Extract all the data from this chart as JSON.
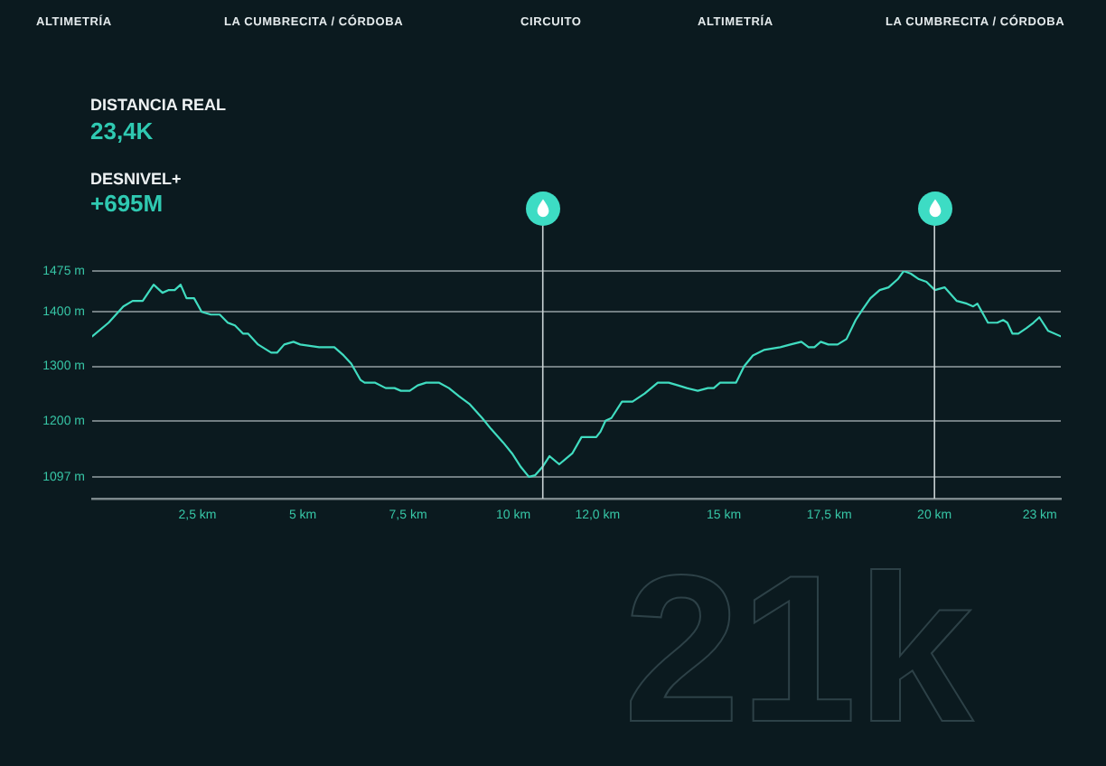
{
  "chart_data": {
    "type": "line",
    "x": [
      0,
      0.39,
      0.74,
      0.96,
      1.2,
      1.46,
      1.67,
      1.82,
      1.96,
      2.1,
      2.24,
      2.42,
      2.6,
      2.82,
      3.03,
      3.22,
      3.39,
      3.58,
      3.7,
      3.94,
      4.25,
      4.39,
      4.56,
      4.78,
      4.94,
      5.39,
      5.75,
      5.97,
      6.15,
      6.37,
      6.47,
      6.71,
      6.97,
      7.18,
      7.33,
      7.54,
      7.73,
      7.93,
      8.23,
      8.47,
      8.71,
      8.97,
      9.26,
      9.47,
      9.76,
      9.97,
      10.18,
      10.37,
      10.52,
      10.69,
      10.86,
      11.09,
      11.4,
      11.62,
      11.97,
      12.07,
      12.19,
      12.33,
      12.58,
      12.83,
      13.12,
      13.43,
      13.69,
      13.91,
      14.12,
      14.38,
      14.62,
      14.76,
      14.91,
      15.29,
      15.48,
      15.69,
      15.95,
      16.34,
      16.58,
      16.84,
      17.01,
      17.15,
      17.3,
      17.48,
      17.7,
      17.91,
      18.13,
      18.3,
      18.48,
      18.7,
      18.91,
      19.13,
      19.27,
      19.44,
      19.63,
      19.81,
      20.01,
      20.24,
      20.53,
      20.77,
      20.92,
      21.02,
      21.27,
      21.49,
      21.63,
      21.73,
      21.85,
      21.99,
      22.18,
      22.35,
      22.49,
      22.7,
      23
    ],
    "values": [
      1355,
      1380,
      1410,
      1420,
      1420,
      1450,
      1435,
      1440,
      1440,
      1450,
      1425,
      1425,
      1400,
      1395,
      1395,
      1380,
      1375,
      1360,
      1360,
      1340,
      1325,
      1325,
      1340,
      1345,
      1340,
      1335,
      1335,
      1320,
      1305,
      1275,
      1270,
      1270,
      1260,
      1260,
      1255,
      1255,
      1265,
      1270,
      1270,
      1260,
      1245,
      1230,
      1205,
      1185,
      1160,
      1140,
      1115,
      1097,
      1100,
      1115,
      1135,
      1120,
      1140,
      1170,
      1170,
      1180,
      1200,
      1205,
      1235,
      1235,
      1250,
      1270,
      1270,
      1265,
      1260,
      1255,
      1260,
      1260,
      1270,
      1270,
      1300,
      1320,
      1330,
      1335,
      1340,
      1345,
      1335,
      1335,
      1345,
      1340,
      1340,
      1350,
      1385,
      1405,
      1425,
      1440,
      1445,
      1460,
      1475,
      1470,
      1460,
      1455,
      1440,
      1445,
      1420,
      1415,
      1410,
      1415,
      1380,
      1380,
      1385,
      1380,
      1360,
      1360,
      1370,
      1380,
      1390,
      1365,
      1355
    ],
    "color": "#40dcc0",
    "xlim": [
      0,
      23
    ],
    "xticks": [
      {
        "value": 2.5,
        "label": "2,5 km"
      },
      {
        "value": 5,
        "label": "5 km"
      },
      {
        "value": 7.5,
        "label": "7,5 km"
      },
      {
        "value": 10,
        "label": "10 km"
      },
      {
        "value": 12,
        "label": "12,0 km"
      },
      {
        "value": 15,
        "label": "15 km"
      },
      {
        "value": 17.5,
        "label": "17,5 km"
      },
      {
        "value": 20,
        "label": "20 km"
      },
      {
        "value": 22.5,
        "label": "23 km"
      }
    ],
    "ylim": [
      1057,
      1475
    ],
    "yticks": [
      {
        "value": 1097,
        "label": "1097 m"
      },
      {
        "value": 1200,
        "label": "1200 m"
      },
      {
        "value": 1300,
        "label": "1300 m"
      },
      {
        "value": 1400,
        "label": "1400 m"
      },
      {
        "value": 1475,
        "label": "1475 m"
      }
    ],
    "grid": "y",
    "marker": "none",
    "ref_lines": [
      {
        "axis": "x",
        "value": 10.7,
        "color": "#c9d2d4"
      },
      {
        "axis": "x",
        "value": 20,
        "color": "#c9d2d4"
      }
    ],
    "annotations": [
      "ALTIMETRÍA",
      "LA CUMBRECITA / CÓRDOBA",
      "CIRCUITO",
      "ALTIMETRÍA",
      "LA CUMBRECITA / CÓRDOBA",
      "DISTANCIA REAL",
      "23,4K",
      "DESNIVEL+",
      "+695M",
      "21k"
    ]
  }
}
